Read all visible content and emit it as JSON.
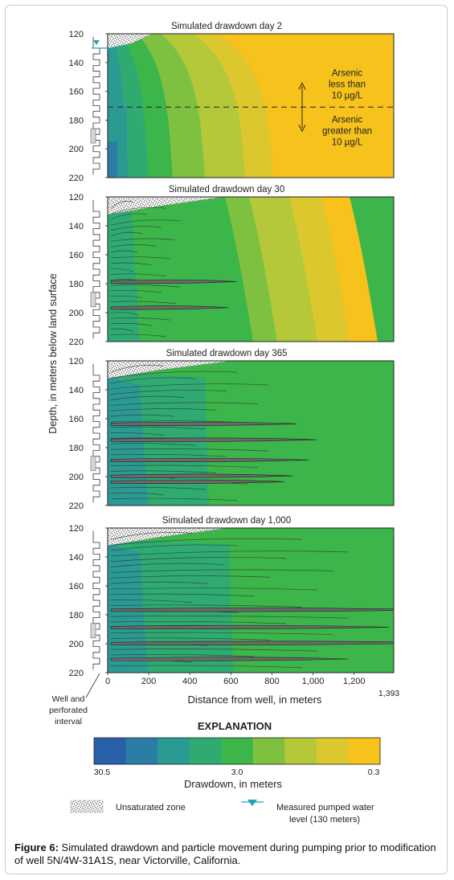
{
  "chart_data": [
    {
      "type": "heatmap",
      "title": "Simulated drawdown day 2",
      "ylim": [
        120,
        220
      ],
      "xlim": [
        0,
        1393
      ],
      "y_ticks": [
        "120",
        "140",
        "160",
        "180",
        "200",
        "220"
      ],
      "front_distance_m": 0,
      "contour_color_indices": [
        8,
        7,
        6,
        5,
        4,
        3,
        2
      ],
      "annotation_upper": [
        "Arsenic",
        "less than",
        "10 µg/L"
      ],
      "annotation_lower": [
        "Arsenic",
        "greater than",
        "10 µg/L"
      ],
      "water_level_m": 130,
      "dividing_depth_m": 171
    },
    {
      "type": "heatmap",
      "title": "Simulated drawdown day 30",
      "ylim": [
        120,
        220
      ],
      "xlim": [
        0,
        1393
      ],
      "y_ticks": [
        "120",
        "140",
        "160",
        "180",
        "200",
        "220"
      ],
      "front_distance_m": 260,
      "contour_color_indices": [
        8,
        7,
        6,
        5,
        4,
        4,
        4
      ]
    },
    {
      "type": "heatmap",
      "title": "Simulated drawdown day 365",
      "ylim": [
        120,
        220
      ],
      "xlim": [
        0,
        1393
      ],
      "y_ticks": [
        "120",
        "140",
        "160",
        "180",
        "200",
        "220"
      ],
      "front_distance_m": 1000,
      "contour_color_indices": [
        4,
        4,
        4,
        4,
        4,
        4,
        4
      ]
    },
    {
      "type": "heatmap",
      "title": "Simulated drawdown day 1,000",
      "ylim": [
        120,
        220
      ],
      "xlim": [
        0,
        1393
      ],
      "y_ticks": [
        "120",
        "140",
        "160",
        "180",
        "200",
        "220"
      ],
      "x_ticks": [
        "0",
        "200",
        "400",
        "600",
        "800",
        "1,000",
        "1,200"
      ],
      "x_tick_values": [
        0,
        200,
        400,
        600,
        800,
        1000,
        1200
      ],
      "x_end_label": "1,393",
      "front_distance_m": 1200,
      "contour_color_indices": [
        4,
        4,
        4,
        4,
        4,
        4,
        4
      ]
    }
  ],
  "axes": {
    "ylabel": "Depth, in meters below land surface",
    "xlabel": "Distance from well, in meters"
  },
  "well_label": [
    "Well and",
    "perforated",
    "interval"
  ],
  "explanation": {
    "title": "EXPLANATION",
    "colorbar_colors": [
      "#2a5fa9",
      "#2a7ea5",
      "#2a9a93",
      "#2fab72",
      "#3cb54a",
      "#7ec141",
      "#b4c83a",
      "#dcc72e",
      "#f6c21b"
    ],
    "colorbar_labels": [
      "30.5",
      "3.0",
      "0.3"
    ],
    "colorbar_title": "Drawdown, in meters",
    "unsaturated_label": "Unsaturated zone",
    "water_level_label": [
      "Measured pumped water",
      "level (130 meters)"
    ]
  },
  "caption": {
    "prefix": "Figure 6:",
    "text": " Simulated drawdown and particle movement during pumping prior to modification of well 5N/4W-31A1S, near Victorville, California."
  }
}
